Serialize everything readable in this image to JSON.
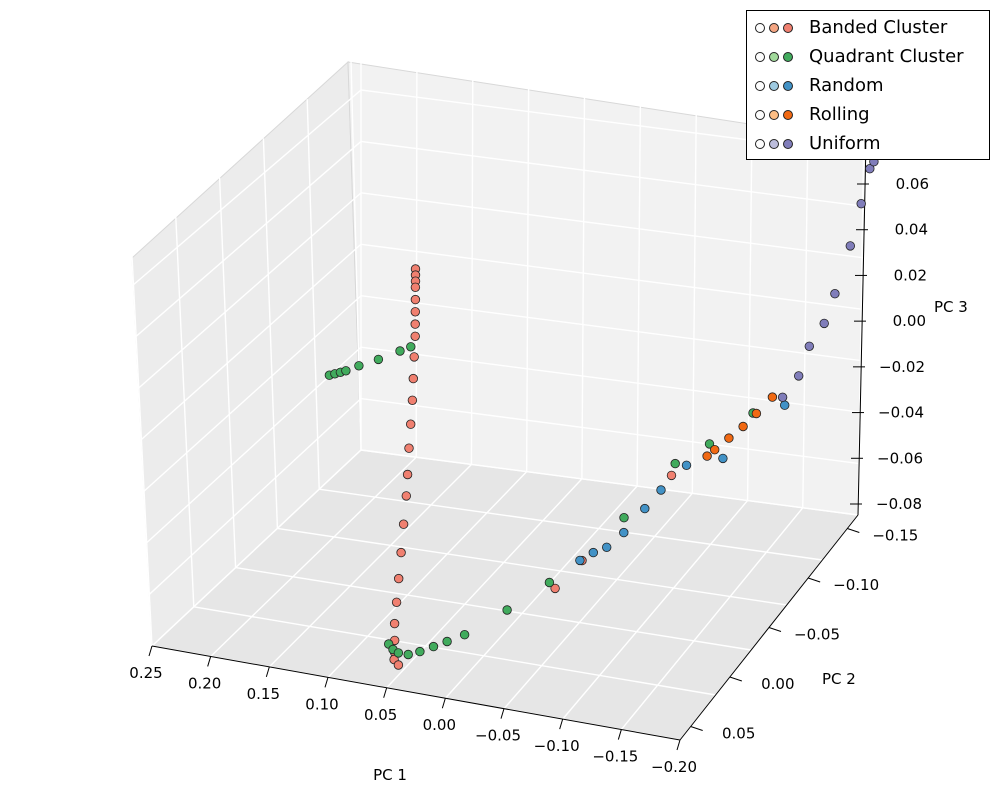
{
  "chart_data": {
    "type": "scatter",
    "projection": "3d",
    "title": "",
    "xlabel": "PC 1",
    "ylabel": "PC 2",
    "zlabel": "PC 3",
    "x_ticks": [
      "0.25",
      "0.20",
      "0.15",
      "0.10",
      "0.05",
      "0.00",
      "−0.05",
      "−0.10",
      "−0.15",
      "−0.20"
    ],
    "y_ticks": [
      "−0.15",
      "−0.10",
      "−0.05",
      "0.00",
      "0.05"
    ],
    "z_ticks": [
      "0.06",
      "0.04",
      "0.02",
      "0.00",
      "−0.02",
      "−0.04",
      "−0.06",
      "−0.08"
    ],
    "xlim": [
      0.25,
      -0.2
    ],
    "ylim": [
      -0.15,
      0.05
    ],
    "zlim": [
      -0.08,
      0.07
    ],
    "grid": true,
    "legend_position": "top-right",
    "legend": [
      {
        "label": "Banded Cluster",
        "colors": [
          "#fdfdfd",
          "#f4a582",
          "#f08070"
        ]
      },
      {
        "label": "Quadrant Cluster",
        "colors": [
          "#fdfdfd",
          "#a1d99b",
          "#41ab5d"
        ]
      },
      {
        "label": "Random",
        "colors": [
          "#fdfdfd",
          "#9ecae1",
          "#4292c6"
        ]
      },
      {
        "label": "Rolling",
        "colors": [
          "#fdfdfd",
          "#fdbe85",
          "#f16913"
        ]
      },
      {
        "label": "Uniform",
        "colors": [
          "#fdfdfd",
          "#bcbddc",
          "#807dba"
        ]
      }
    ],
    "series": [
      {
        "name": "Banded Cluster",
        "points": [
          [
            0.195,
            -0.14,
            0.0
          ],
          [
            0.194,
            -0.139,
            -0.002
          ],
          [
            0.193,
            -0.138,
            -0.004
          ],
          [
            0.192,
            -0.137,
            -0.006
          ],
          [
            0.19,
            -0.135,
            -0.01
          ],
          [
            0.188,
            -0.133,
            -0.014
          ],
          [
            0.186,
            -0.131,
            -0.018
          ],
          [
            0.184,
            -0.129,
            -0.022
          ],
          [
            0.18,
            -0.124,
            -0.028
          ],
          [
            0.175,
            -0.118,
            -0.034
          ],
          [
            0.17,
            -0.112,
            -0.04
          ],
          [
            0.164,
            -0.104,
            -0.046
          ],
          [
            0.158,
            -0.096,
            -0.052
          ],
          [
            0.15,
            -0.086,
            -0.058
          ],
          [
            0.142,
            -0.076,
            -0.062
          ],
          [
            0.13,
            -0.06,
            -0.066
          ],
          [
            0.118,
            -0.044,
            -0.07
          ],
          [
            0.106,
            -0.028,
            -0.073
          ],
          [
            0.094,
            -0.012,
            -0.075
          ],
          [
            0.082,
            0.004,
            -0.076
          ],
          [
            0.07,
            0.018,
            -0.076
          ],
          [
            0.06,
            0.03,
            -0.075
          ],
          [
            0.052,
            0.04,
            -0.073
          ],
          [
            0.04,
            0.05,
            -0.07
          ],
          [
            -0.045,
            -0.01,
            -0.058
          ],
          [
            -0.06,
            -0.02,
            -0.05
          ],
          [
            -0.105,
            -0.06,
            -0.03
          ]
        ]
      },
      {
        "name": "Quadrant Cluster",
        "points": [
          [
            0.215,
            -0.08,
            -0.02
          ],
          [
            0.212,
            -0.082,
            -0.02
          ],
          [
            0.209,
            -0.084,
            -0.02
          ],
          [
            0.206,
            -0.086,
            -0.02
          ],
          [
            0.2,
            -0.092,
            -0.02
          ],
          [
            0.19,
            -0.1,
            -0.02
          ],
          [
            0.18,
            -0.11,
            -0.02
          ],
          [
            0.175,
            -0.115,
            -0.02
          ],
          [
            0.065,
            0.03,
            -0.072
          ],
          [
            0.058,
            0.034,
            -0.072
          ],
          [
            0.05,
            0.038,
            -0.071
          ],
          [
            0.04,
            0.04,
            -0.07
          ],
          [
            0.03,
            0.04,
            -0.068
          ],
          [
            0.02,
            0.038,
            -0.066
          ],
          [
            0.01,
            0.036,
            -0.064
          ],
          [
            0.0,
            0.03,
            -0.063
          ],
          [
            -0.02,
            0.01,
            -0.06
          ],
          [
            -0.04,
            -0.01,
            -0.056
          ],
          [
            -0.08,
            -0.04,
            -0.04
          ],
          [
            -0.1,
            -0.07,
            -0.03
          ],
          [
            -0.13,
            -0.07,
            -0.02
          ],
          [
            -0.16,
            -0.08,
            -0.01
          ]
        ]
      },
      {
        "name": "Random",
        "points": [
          [
            -0.05,
            -0.03,
            -0.055
          ],
          [
            -0.06,
            -0.032,
            -0.052
          ],
          [
            -0.07,
            -0.034,
            -0.05
          ],
          [
            -0.08,
            -0.04,
            -0.046
          ],
          [
            -0.09,
            -0.05,
            -0.04
          ],
          [
            -0.1,
            -0.055,
            -0.034
          ],
          [
            -0.11,
            -0.07,
            -0.03
          ],
          [
            -0.15,
            -0.06,
            -0.02
          ],
          [
            -0.18,
            -0.09,
            -0.01
          ]
        ]
      },
      {
        "name": "Rolling",
        "points": [
          [
            -0.12,
            -0.08,
            -0.03
          ],
          [
            -0.125,
            -0.082,
            -0.028
          ],
          [
            -0.135,
            -0.085,
            -0.024
          ],
          [
            -0.145,
            -0.088,
            -0.02
          ],
          [
            -0.155,
            -0.09,
            -0.015
          ],
          [
            -0.165,
            -0.095,
            -0.01
          ]
        ]
      },
      {
        "name": "Uniform",
        "points": [
          [
            -0.19,
            -0.12,
            0.01
          ],
          [
            -0.195,
            -0.125,
            0.02
          ],
          [
            -0.2,
            -0.135,
            0.035
          ],
          [
            -0.205,
            -0.14,
            0.05
          ],
          [
            -0.208,
            -0.145,
            0.062
          ],
          [
            -0.21,
            -0.147,
            0.064
          ],
          [
            -0.185,
            -0.11,
            0.005
          ],
          [
            -0.18,
            -0.105,
            -0.005
          ],
          [
            -0.17,
            -0.1,
            -0.012
          ]
        ]
      }
    ]
  }
}
